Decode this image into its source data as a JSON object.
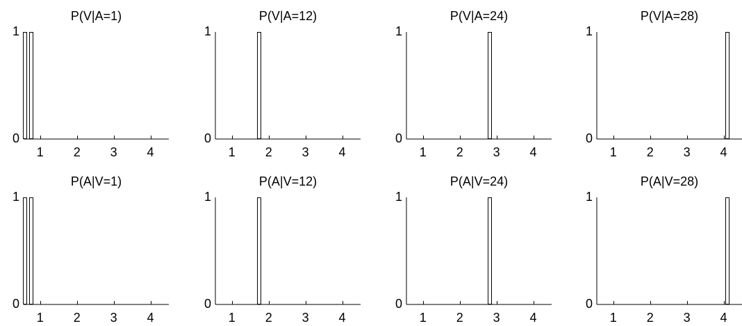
{
  "figure": {
    "background": "#ffffff",
    "foreground": "#000000"
  },
  "chart_data": [
    {
      "type": "bar",
      "title": "P(V|A=1)",
      "xticks": [
        "1",
        "2",
        "3",
        "4"
      ],
      "yticks": [
        "0",
        "1"
      ],
      "xlim": [
        0.55,
        4.5
      ],
      "ylim": [
        0,
        1
      ],
      "bars": [
        {
          "x": 0.58,
          "value": 1
        },
        {
          "x": 0.74,
          "value": 1
        }
      ]
    },
    {
      "type": "bar",
      "title": "P(V|A=12)",
      "xticks": [
        "1",
        "2",
        "3",
        "4"
      ],
      "yticks": [
        "0",
        "1"
      ],
      "xlim": [
        0.55,
        4.5
      ],
      "ylim": [
        0,
        1
      ],
      "bars": [
        {
          "x": 1.74,
          "value": 1
        }
      ]
    },
    {
      "type": "bar",
      "title": "P(V|A=24)",
      "xticks": [
        "1",
        "2",
        "3",
        "4"
      ],
      "yticks": [
        "0",
        "1"
      ],
      "xlim": [
        0.55,
        4.5
      ],
      "ylim": [
        0,
        1
      ],
      "bars": [
        {
          "x": 2.81,
          "value": 1
        }
      ]
    },
    {
      "type": "bar",
      "title": "P(V|A=28)",
      "xticks": [
        "1",
        "2",
        "3",
        "4"
      ],
      "yticks": [
        "0",
        "1"
      ],
      "xlim": [
        0.55,
        4.5
      ],
      "ylim": [
        0,
        1
      ],
      "bars": [
        {
          "x": 4.1,
          "value": 1
        }
      ]
    },
    {
      "type": "bar",
      "title": "P(A|V=1)",
      "xticks": [
        "1",
        "2",
        "3",
        "4"
      ],
      "yticks": [
        "0",
        "1"
      ],
      "xlim": [
        0.55,
        4.5
      ],
      "ylim": [
        0,
        1
      ],
      "bars": [
        {
          "x": 0.58,
          "value": 1
        },
        {
          "x": 0.74,
          "value": 1
        }
      ]
    },
    {
      "type": "bar",
      "title": "P(A|V=12)",
      "xticks": [
        "1",
        "2",
        "3",
        "4"
      ],
      "yticks": [
        "0",
        "1"
      ],
      "xlim": [
        0.55,
        4.5
      ],
      "ylim": [
        0,
        1
      ],
      "bars": [
        {
          "x": 1.74,
          "value": 1
        }
      ]
    },
    {
      "type": "bar",
      "title": "P(A|V=24)",
      "xticks": [
        "1",
        "2",
        "3",
        "4"
      ],
      "yticks": [
        "0",
        "1"
      ],
      "xlim": [
        0.55,
        4.5
      ],
      "ylim": [
        0,
        1
      ],
      "bars": [
        {
          "x": 2.81,
          "value": 1
        }
      ]
    },
    {
      "type": "bar",
      "title": "P(A|V=28)",
      "xticks": [
        "1",
        "2",
        "3",
        "4"
      ],
      "yticks": [
        "0",
        "1"
      ],
      "xlim": [
        0.55,
        4.5
      ],
      "ylim": [
        0,
        1
      ],
      "bars": [
        {
          "x": 4.1,
          "value": 1
        }
      ]
    }
  ]
}
